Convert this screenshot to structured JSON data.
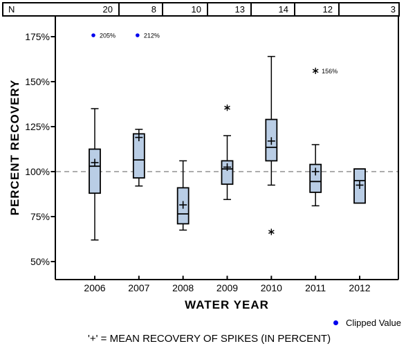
{
  "header_table": {
    "row_label": "N",
    "counts": [
      "20",
      "8",
      "10",
      "13",
      "14",
      "12",
      "3"
    ]
  },
  "chart_data": {
    "type": "boxplot",
    "title": "",
    "xlabel": "WATER YEAR",
    "ylabel": "PERCENT RECOVERY",
    "categories": [
      "2006",
      "2007",
      "2008",
      "2009",
      "2010",
      "2011",
      "2012"
    ],
    "n_values": [
      20,
      8,
      10,
      13,
      14,
      12,
      3
    ],
    "y_ticks": [
      {
        "value": 175,
        "label": "175%"
      },
      {
        "value": 150,
        "label": "150%"
      },
      {
        "value": 125,
        "label": "125%"
      },
      {
        "value": 100,
        "label": "100%"
      },
      {
        "value": 75,
        "label": "75%"
      },
      {
        "value": 50,
        "label": "50%"
      }
    ],
    "ylim": [
      50,
      175
    ],
    "grid": false,
    "reference_line": 100,
    "boxes": [
      {
        "category": "2006",
        "n": 20,
        "whisker_low": 62,
        "q1": 88,
        "median": 103,
        "q3": 112.5,
        "whisker_high": 135,
        "mean": 105,
        "outliers": [],
        "clipped_values": [
          {
            "value": 205,
            "label": "205%"
          }
        ]
      },
      {
        "category": "2007",
        "n": 8,
        "whisker_low": 92,
        "q1": 96.5,
        "median": 106.5,
        "q3": 121,
        "whisker_high": 123.5,
        "mean": 119,
        "outliers": [],
        "clipped_values": [
          {
            "value": 212,
            "label": "212%"
          }
        ]
      },
      {
        "category": "2008",
        "n": 10,
        "whisker_low": 67.5,
        "q1": 71,
        "median": 76.5,
        "q3": 91,
        "whisker_high": 106,
        "mean": 81.5,
        "outliers": [],
        "clipped_values": []
      },
      {
        "category": "2009",
        "n": 13,
        "whisker_low": 84.5,
        "q1": 93,
        "median": 101.5,
        "q3": 106,
        "whisker_high": 120,
        "mean": 102.5,
        "outliers": [
          {
            "value": 135.5,
            "label": ""
          }
        ],
        "clipped_values": []
      },
      {
        "category": "2010",
        "n": 14,
        "whisker_low": 92.5,
        "q1": 106,
        "median": 113.5,
        "q3": 129,
        "whisker_high": 164,
        "mean": 117,
        "outliers": [
          {
            "value": 66.5,
            "label": ""
          }
        ],
        "clipped_values": []
      },
      {
        "category": "2011",
        "n": 12,
        "whisker_low": 81,
        "q1": 88.5,
        "median": 94.5,
        "q3": 104,
        "whisker_high": 115,
        "mean": 100,
        "outliers": [
          {
            "value": 156,
            "label": "156%"
          }
        ],
        "clipped_values": []
      },
      {
        "category": "2012",
        "n": 3,
        "whisker_low": null,
        "q1": 82.5,
        "median": 95,
        "q3": 101.5,
        "whisker_high": null,
        "mean": 92.5,
        "outliers": [],
        "clipped_values": []
      }
    ],
    "legend": {
      "position": "bottom-right",
      "clipped_label": "Clipped Value"
    },
    "footnote": "'+' = MEAN RECOVERY OF SPIKES (IN PERCENT)",
    "colors": {
      "box_fill": "#b9cde5",
      "box_stroke": "#000000",
      "clipped_dot": "#0000ee",
      "reference_line": "#909090",
      "axis": "#000000"
    }
  }
}
